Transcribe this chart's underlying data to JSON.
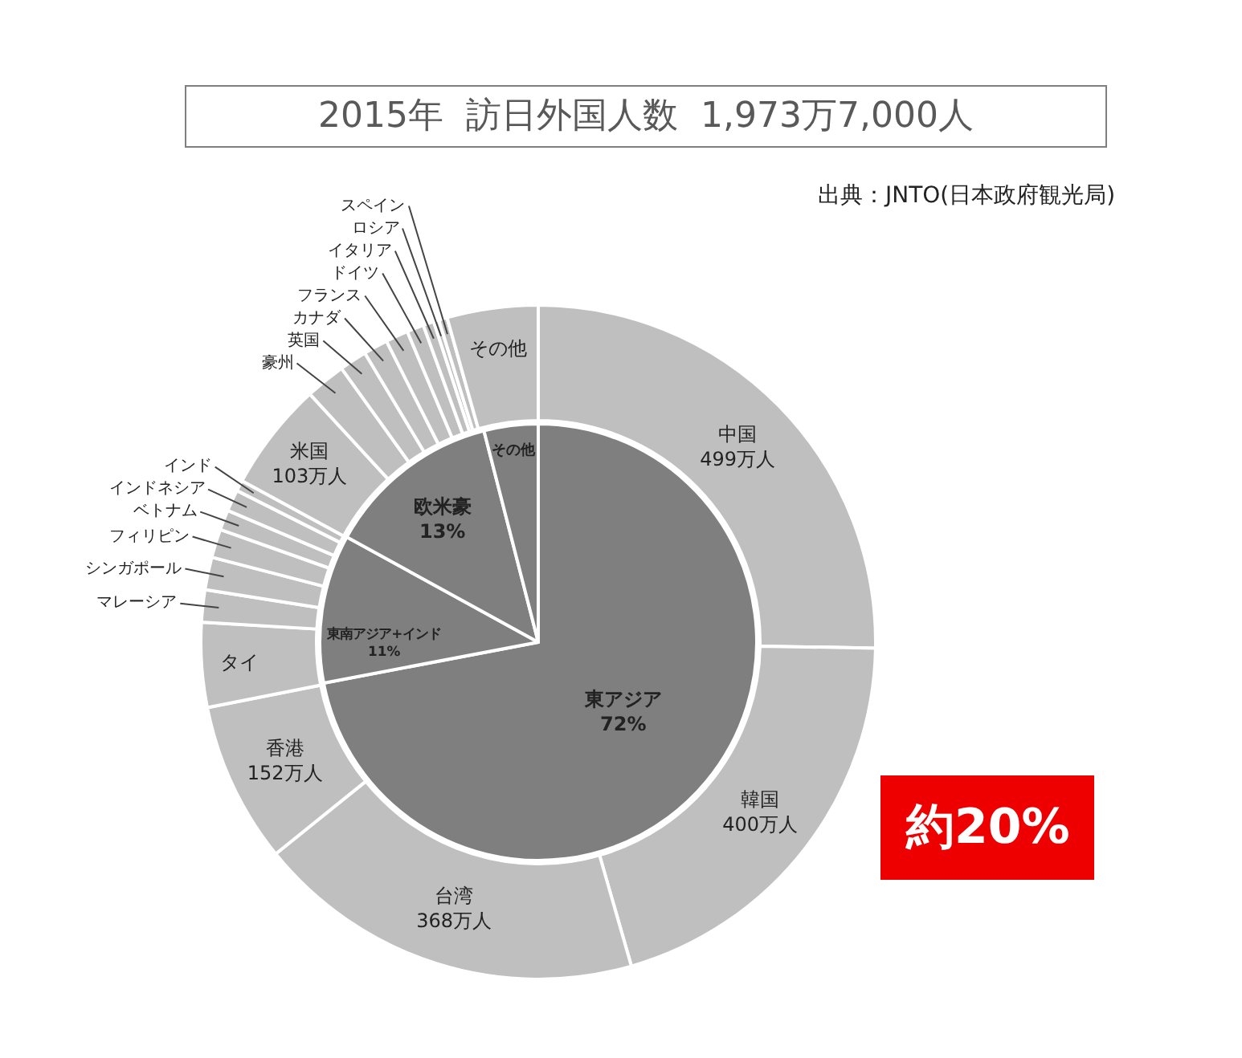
{
  "chart_data": [
    {
      "type": "donut",
      "title": "2015年  訪日外国人数  1,973万7,000人",
      "annotations": [
        "出典：JNTO(日本政府観光局)",
        "約20%"
      ],
      "categories": [
        "中国",
        "韓国",
        "台湾",
        "香港",
        "タイ",
        "マレーシア",
        "シンガポール",
        "フィリピン",
        "ベトナム",
        "インドネシア",
        "インド",
        "米国",
        "豪州",
        "英国",
        "カナダ",
        "フランス",
        "ドイツ",
        "イタリア",
        "ロシア",
        "スペイン",
        "その他"
      ],
      "values": [
        499,
        400,
        368,
        152,
        80,
        30.5,
        30.9,
        27,
        19,
        20.5,
        10.3,
        103,
        38,
        26,
        23,
        21.4,
        16,
        10.2,
        5,
        8,
        86
      ],
      "value_labels": [
        "499万人",
        "400万人",
        "368万人",
        "152万人",
        null,
        null,
        null,
        null,
        null,
        null,
        null,
        "103万人",
        null,
        null,
        null,
        null,
        null,
        null,
        null,
        null,
        null
      ],
      "colors": [
        "#bfbfbf",
        "#bfbfbf",
        "#bfbfbf",
        "#bfbfbf",
        "#bfbfbf",
        "#bfbfbf",
        "#bfbfbf",
        "#bfbfbf",
        "#bfbfbf",
        "#bfbfbf",
        "#bfbfbf",
        "#bfbfbf",
        "#bfbfbf",
        "#bfbfbf",
        "#bfbfbf",
        "#bfbfbf",
        "#bfbfbf",
        "#bfbfbf",
        "#bfbfbf",
        "#bfbfbf",
        "#bfbfbf"
      ]
    },
    {
      "type": "pie",
      "categories": [
        "東アジア",
        "東南アジア+インド",
        "欧米豪",
        "その他"
      ],
      "values": [
        72,
        11,
        13,
        4
      ],
      "value_labels": [
        "72%",
        "11%",
        "13%",
        null
      ],
      "colors": [
        "#7f7f7f",
        "#7f7f7f",
        "#7f7f7f",
        "#7f7f7f"
      ]
    }
  ]
}
